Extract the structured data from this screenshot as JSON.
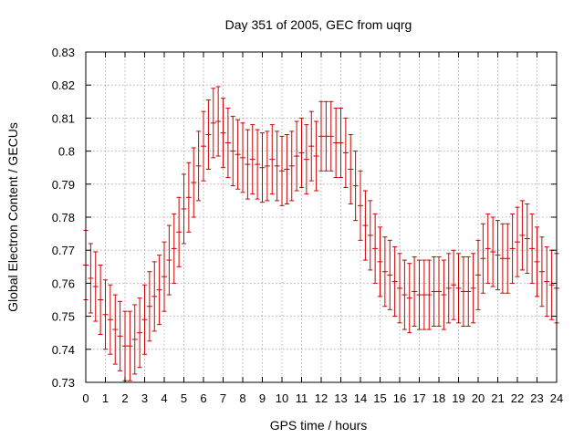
{
  "chart_data": {
    "type": "scatter",
    "title": "Day 351 of 2005, GEC from uqrg",
    "xlabel": "GPS time / hours",
    "ylabel": "Global Electron Content / GECUs",
    "xlim": [
      0,
      24
    ],
    "ylim": [
      0.73,
      0.83
    ],
    "x_ticks": [
      0,
      1,
      2,
      3,
      4,
      5,
      6,
      7,
      8,
      9,
      10,
      11,
      12,
      13,
      14,
      15,
      16,
      17,
      18,
      19,
      20,
      21,
      22,
      23,
      24
    ],
    "y_ticks": [
      0.73,
      0.74,
      0.75,
      0.76,
      0.77,
      0.78,
      0.79,
      0.8,
      0.81,
      0.82,
      0.83
    ],
    "y_tick_labels": [
      "0.73",
      "0.74",
      "0.75",
      "0.76",
      "0.77",
      "0.78",
      "0.79",
      "0.8",
      "0.81",
      "0.82",
      "0.83"
    ],
    "grid": true,
    "error_bar": 0.0105,
    "color": "#cc0000",
    "series": [
      {
        "x": [
          0,
          0.25,
          0.5,
          0.75,
          1,
          1.25,
          1.5,
          1.75,
          2,
          2.25,
          2.5,
          2.75,
          3,
          3.25,
          3.5,
          3.75,
          4,
          4.25,
          4.5,
          4.75,
          5,
          5.25,
          5.5,
          5.75,
          6,
          6.25,
          6.5,
          6.75,
          7,
          7.25,
          7.5,
          7.75,
          8,
          8.25,
          8.5,
          8.75,
          9,
          9.25,
          9.5,
          9.75,
          10,
          10.25,
          10.5,
          10.75,
          11,
          11.25,
          11.5,
          11.75,
          12,
          12.25,
          12.5,
          12.75,
          13,
          13.25,
          13.5,
          13.75,
          14,
          14.25,
          14.5,
          14.75,
          15,
          15.25,
          15.5,
          15.75,
          16,
          16.25,
          16.5,
          16.75,
          17,
          17.25,
          17.5,
          17.75,
          18,
          18.25,
          18.5,
          18.75,
          19,
          19.25,
          19.5,
          19.75,
          20,
          20.25,
          20.5,
          20.75,
          21,
          21.25,
          21.5,
          21.75,
          22,
          22.25,
          22.5,
          22.75,
          23,
          23.25,
          23.5,
          23.75,
          24
        ],
        "y": [
          0.7655,
          0.7615,
          0.759,
          0.755,
          0.7505,
          0.749,
          0.746,
          0.744,
          0.741,
          0.741,
          0.743,
          0.745,
          0.749,
          0.753,
          0.756,
          0.758,
          0.762,
          0.767,
          0.7705,
          0.7755,
          0.7825,
          0.786,
          0.7905,
          0.7955,
          0.8015,
          0.805,
          0.8085,
          0.809,
          0.8055,
          0.8025,
          0.8,
          0.799,
          0.798,
          0.796,
          0.7975,
          0.796,
          0.795,
          0.7955,
          0.7975,
          0.7955,
          0.794,
          0.7945,
          0.7955,
          0.7985,
          0.7995,
          0.7975,
          0.8015,
          0.7985,
          0.8045,
          0.8045,
          0.8045,
          0.8025,
          0.8025,
          0.7995,
          0.7945,
          0.7895,
          0.7835,
          0.7775,
          0.7745,
          0.7705,
          0.7665,
          0.7635,
          0.7625,
          0.7605,
          0.7585,
          0.7565,
          0.7555,
          0.7575,
          0.7565,
          0.7565,
          0.7565,
          0.7575,
          0.7575,
          0.7565,
          0.7585,
          0.7595,
          0.7585,
          0.7575,
          0.7575,
          0.7585,
          0.7625,
          0.7675,
          0.7705,
          0.7695,
          0.7685,
          0.7675,
          0.7675,
          0.7705,
          0.7725,
          0.7745,
          0.7735,
          0.7705,
          0.7665,
          0.7635,
          0.7605,
          0.7595,
          0.7585
        ]
      }
    ]
  }
}
